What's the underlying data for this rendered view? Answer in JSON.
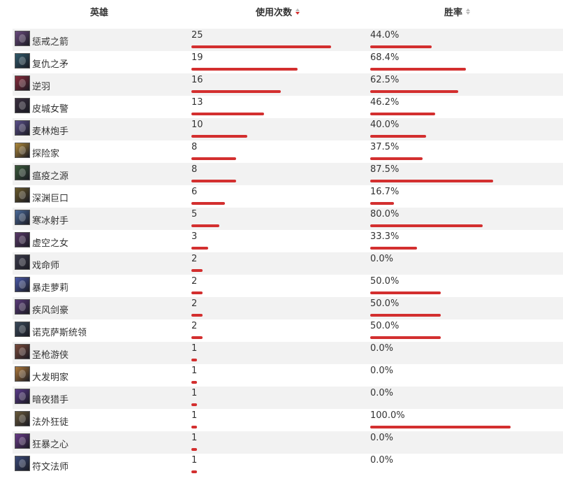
{
  "header": {
    "hero_label": "英雄",
    "count_label": "使用次数",
    "rate_label": "胜率"
  },
  "colors": {
    "bar": "#d32f2f",
    "row_alt": "#f2f2f2",
    "sort_active": "#d32f2f",
    "sort_inactive": "#bbbbbb"
  },
  "count_max": 25,
  "heroes": [
    {
      "name": "惩戒之箭",
      "count": "25",
      "count_value": 25,
      "win_rate": "44.0%",
      "win_value": 44.0,
      "avatar_color": "#6a4a7e"
    },
    {
      "name": "复仇之矛",
      "count": "19",
      "count_value": 19,
      "win_rate": "68.4%",
      "win_value": 68.4,
      "avatar_color": "#2f5a6b"
    },
    {
      "name": "逆羽",
      "count": "16",
      "count_value": 16,
      "win_rate": "62.5%",
      "win_value": 62.5,
      "avatar_color": "#8a2a3a"
    },
    {
      "name": "皮城女警",
      "count": "13",
      "count_value": 13,
      "win_rate": "46.2%",
      "win_value": 46.2,
      "avatar_color": "#3a2f3f"
    },
    {
      "name": "麦林炮手",
      "count": "10",
      "count_value": 10,
      "win_rate": "40.0%",
      "win_value": 40.0,
      "avatar_color": "#5a4f8a"
    },
    {
      "name": "探险家",
      "count": "8",
      "count_value": 8,
      "win_rate": "37.5%",
      "win_value": 37.5,
      "avatar_color": "#b08a3a"
    },
    {
      "name": "瘟疫之源",
      "count": "8",
      "count_value": 8,
      "win_rate": "87.5%",
      "win_value": 87.5,
      "avatar_color": "#3a5a3a"
    },
    {
      "name": "深渊巨口",
      "count": "6",
      "count_value": 6,
      "win_rate": "16.7%",
      "win_value": 16.7,
      "avatar_color": "#6a5a2a"
    },
    {
      "name": "寒冰射手",
      "count": "5",
      "count_value": 5,
      "win_rate": "80.0%",
      "win_value": 80.0,
      "avatar_color": "#4a6a9a"
    },
    {
      "name": "虚空之女",
      "count": "3",
      "count_value": 3,
      "win_rate": "33.3%",
      "win_value": 33.3,
      "avatar_color": "#5a3a6a"
    },
    {
      "name": "戏命师",
      "count": "2",
      "count_value": 2,
      "win_rate": "0.0%",
      "win_value": 0.0,
      "avatar_color": "#3a3a4a"
    },
    {
      "name": "暴走萝莉",
      "count": "2",
      "count_value": 2,
      "win_rate": "50.0%",
      "win_value": 50.0,
      "avatar_color": "#4a5aaa"
    },
    {
      "name": "疾风剑豪",
      "count": "2",
      "count_value": 2,
      "win_rate": "50.0%",
      "win_value": 50.0,
      "avatar_color": "#5a3a7a"
    },
    {
      "name": "诺克萨斯统领",
      "count": "2",
      "count_value": 2,
      "win_rate": "50.0%",
      "win_value": 50.0,
      "avatar_color": "#3a4a5a"
    },
    {
      "name": "圣枪游侠",
      "count": "1",
      "count_value": 1,
      "win_rate": "0.0%",
      "win_value": 0.0,
      "avatar_color": "#7a4a3a"
    },
    {
      "name": "大发明家",
      "count": "1",
      "count_value": 1,
      "win_rate": "0.0%",
      "win_value": 0.0,
      "avatar_color": "#b07a3a"
    },
    {
      "name": "暗夜猎手",
      "count": "1",
      "count_value": 1,
      "win_rate": "0.0%",
      "win_value": 0.0,
      "avatar_color": "#5a3a8a"
    },
    {
      "name": "法外狂徒",
      "count": "1",
      "count_value": 1,
      "win_rate": "100.0%",
      "win_value": 100.0,
      "avatar_color": "#6a5a3a"
    },
    {
      "name": "狂暴之心",
      "count": "1",
      "count_value": 1,
      "win_rate": "0.0%",
      "win_value": 0.0,
      "avatar_color": "#6a3a8a"
    },
    {
      "name": "符文法师",
      "count": "1",
      "count_value": 1,
      "win_rate": "0.0%",
      "win_value": 0.0,
      "avatar_color": "#3a4a7a"
    }
  ]
}
